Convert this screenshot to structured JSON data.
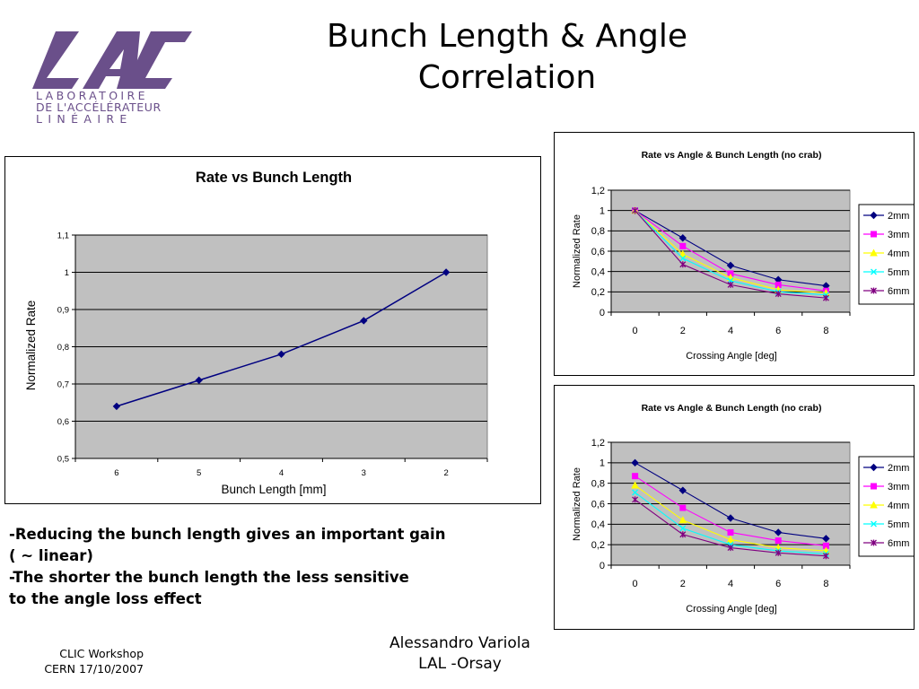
{
  "slide": {
    "title_line1": "Bunch Length & Angle",
    "title_line2": "Correlation",
    "bullets": [
      "-Reducing the bunch length gives an important gain",
      "( ~ linear)",
      "-The shorter the bunch length the less sensitive",
      "to the angle loss effect"
    ],
    "footer_left": [
      "CLIC Workshop",
      "CERN 17/10/2007"
    ],
    "footer_right": [
      "Alessandro Variola",
      "LAL -Orsay"
    ]
  },
  "logo": {
    "mark": "LAL",
    "lines": [
      "LABORATOIRE",
      "DE L'ACCÉLÉRATEUR",
      "L I N É A I R E"
    ],
    "color": "#6a4f8a"
  },
  "chart_data": [
    {
      "type": "line",
      "title": "Rate vs Bunch Length",
      "xlabel": "Bunch Length [mm]",
      "ylabel": "Normalized Rate",
      "categories": [
        "6",
        "5",
        "4",
        "3",
        "2"
      ],
      "series": [
        {
          "values": [
            0.64,
            0.71,
            0.78,
            0.87,
            1.0
          ],
          "color": "#000080"
        }
      ],
      "yticks": [
        "0,5",
        "0,6",
        "0,7",
        "0,8",
        "0,9",
        "1",
        "1,1"
      ],
      "ylim": [
        0.5,
        1.1
      ],
      "plot_bg": "#c0c0c0",
      "grid": true,
      "legend": "none"
    },
    {
      "type": "line",
      "title": "Rate vs Angle & Bunch Length (no crab)",
      "xlabel": "Crossing Angle [deg]",
      "ylabel": "Normalized Rate",
      "categories": [
        "0",
        "2",
        "4",
        "6",
        "8"
      ],
      "yticks": [
        "0",
        "0,2",
        "0,4",
        "0,6",
        "0,8",
        "1",
        "1,2"
      ],
      "ylim": [
        0,
        1.2
      ],
      "plot_bg": "#c0c0c0",
      "grid": true,
      "legend": "right",
      "series": [
        {
          "name": "2mm",
          "values": [
            1.0,
            0.73,
            0.46,
            0.32,
            0.26
          ],
          "color": "#000080",
          "marker": "diamond"
        },
        {
          "name": "3mm",
          "values": [
            1.0,
            0.65,
            0.38,
            0.27,
            0.21
          ],
          "color": "#ff00ff",
          "marker": "square"
        },
        {
          "name": "4mm",
          "values": [
            1.0,
            0.57,
            0.34,
            0.22,
            0.19
          ],
          "color": "#ffff00",
          "marker": "triangle"
        },
        {
          "name": "5mm",
          "values": [
            1.0,
            0.53,
            0.31,
            0.2,
            0.17
          ],
          "color": "#00ffff",
          "marker": "x"
        },
        {
          "name": "6mm",
          "values": [
            1.0,
            0.47,
            0.27,
            0.18,
            0.14
          ],
          "color": "#800080",
          "marker": "star"
        }
      ]
    },
    {
      "type": "line",
      "title": "Rate vs Angle & Bunch Length (no crab)",
      "xlabel": "Crossing Angle [deg]",
      "ylabel": "Normalized Rate",
      "categories": [
        "0",
        "2",
        "4",
        "6",
        "8"
      ],
      "yticks": [
        "0",
        "0,2",
        "0,4",
        "0,6",
        "0,8",
        "1",
        "1,2"
      ],
      "ylim": [
        0,
        1.2
      ],
      "plot_bg": "#c0c0c0",
      "grid": true,
      "legend": "right",
      "series": [
        {
          "name": "2mm",
          "values": [
            1.0,
            0.73,
            0.46,
            0.32,
            0.26
          ],
          "color": "#000080",
          "marker": "diamond"
        },
        {
          "name": "3mm",
          "values": [
            0.87,
            0.56,
            0.32,
            0.24,
            0.19
          ],
          "color": "#ff00ff",
          "marker": "square"
        },
        {
          "name": "4mm",
          "values": [
            0.78,
            0.44,
            0.25,
            0.17,
            0.14
          ],
          "color": "#ffff00",
          "marker": "triangle"
        },
        {
          "name": "5mm",
          "values": [
            0.71,
            0.36,
            0.2,
            0.14,
            0.11
          ],
          "color": "#00ffff",
          "marker": "x"
        },
        {
          "name": "6mm",
          "values": [
            0.64,
            0.3,
            0.17,
            0.12,
            0.09
          ],
          "color": "#800080",
          "marker": "star"
        }
      ]
    }
  ]
}
